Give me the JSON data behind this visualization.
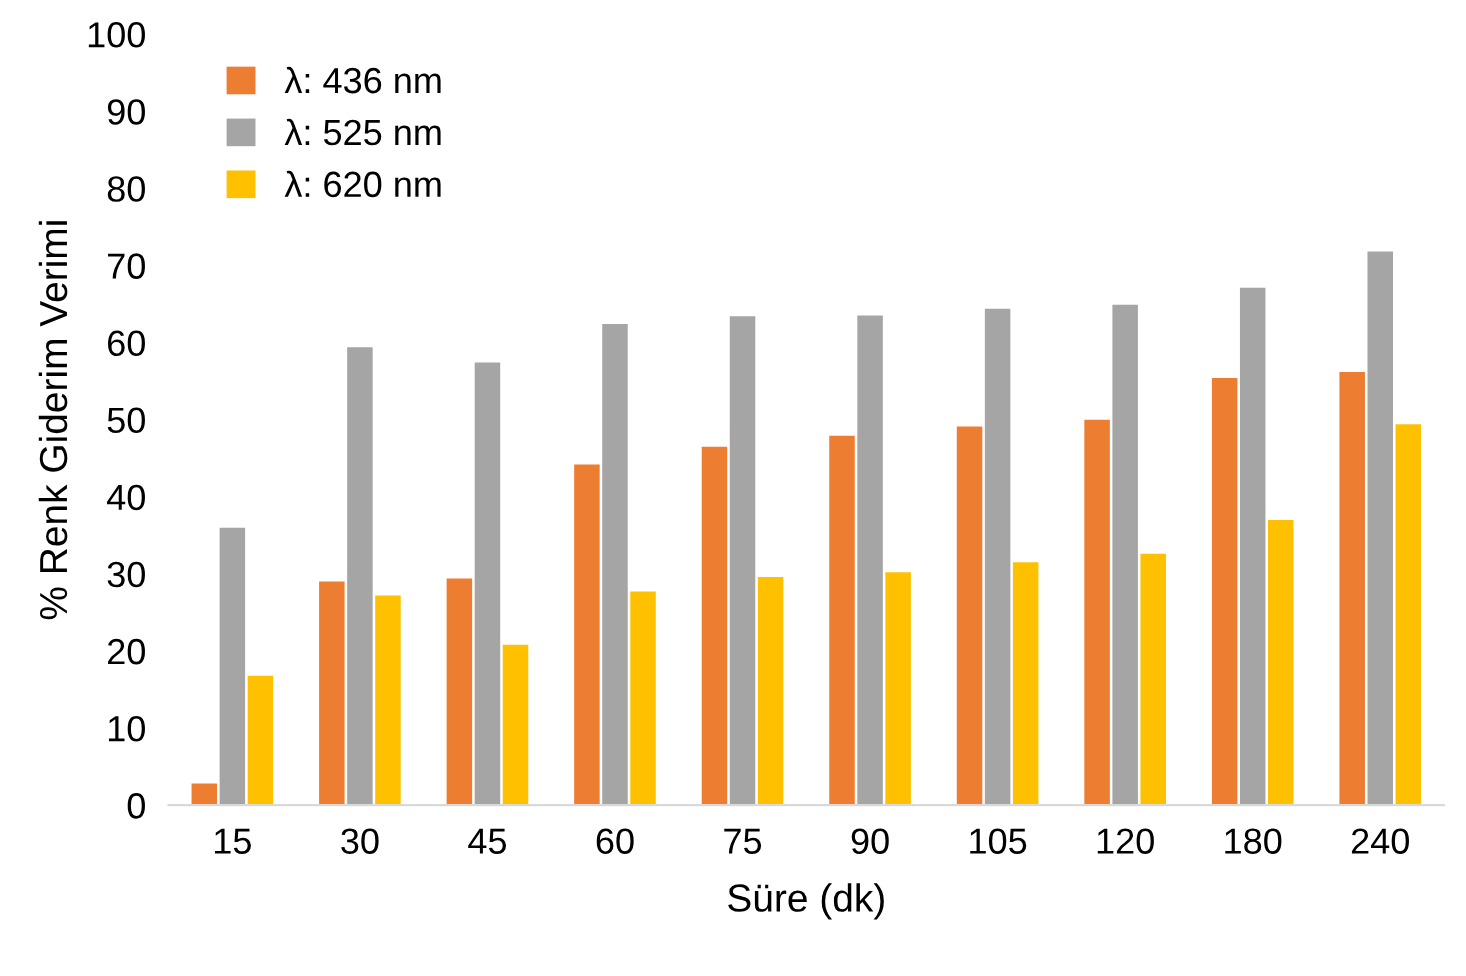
{
  "chart_data": {
    "type": "bar",
    "xlabel": "Süre (dk)",
    "ylabel": "% Renk Giderim Verimi",
    "categories": [
      "15",
      "30",
      "45",
      "60",
      "75",
      "90",
      "105",
      "120",
      "180",
      "240"
    ],
    "series": [
      {
        "name": "λ: 436 nm",
        "color": "#ed7d31",
        "values": [
          2.8,
          29,
          29.4,
          44.2,
          46.5,
          47.9,
          49.1,
          50,
          55.4,
          56.2
        ]
      },
      {
        "name": "λ: 525 nm",
        "color": "#a5a5a5",
        "values": [
          36,
          59.4,
          57.4,
          62.4,
          63.4,
          63.5,
          64.4,
          64.9,
          67.1,
          71.8
        ]
      },
      {
        "name": "λ: 620 nm",
        "color": "#ffc000",
        "values": [
          16.8,
          27.2,
          20.8,
          27.7,
          29.6,
          30.2,
          31.5,
          32.6,
          37,
          49.4
        ]
      }
    ],
    "ylim": [
      0,
      100
    ],
    "yticks": [
      0,
      10,
      20,
      30,
      40,
      50,
      60,
      70,
      80,
      90,
      100
    ],
    "grid": false,
    "legend": "top left"
  }
}
